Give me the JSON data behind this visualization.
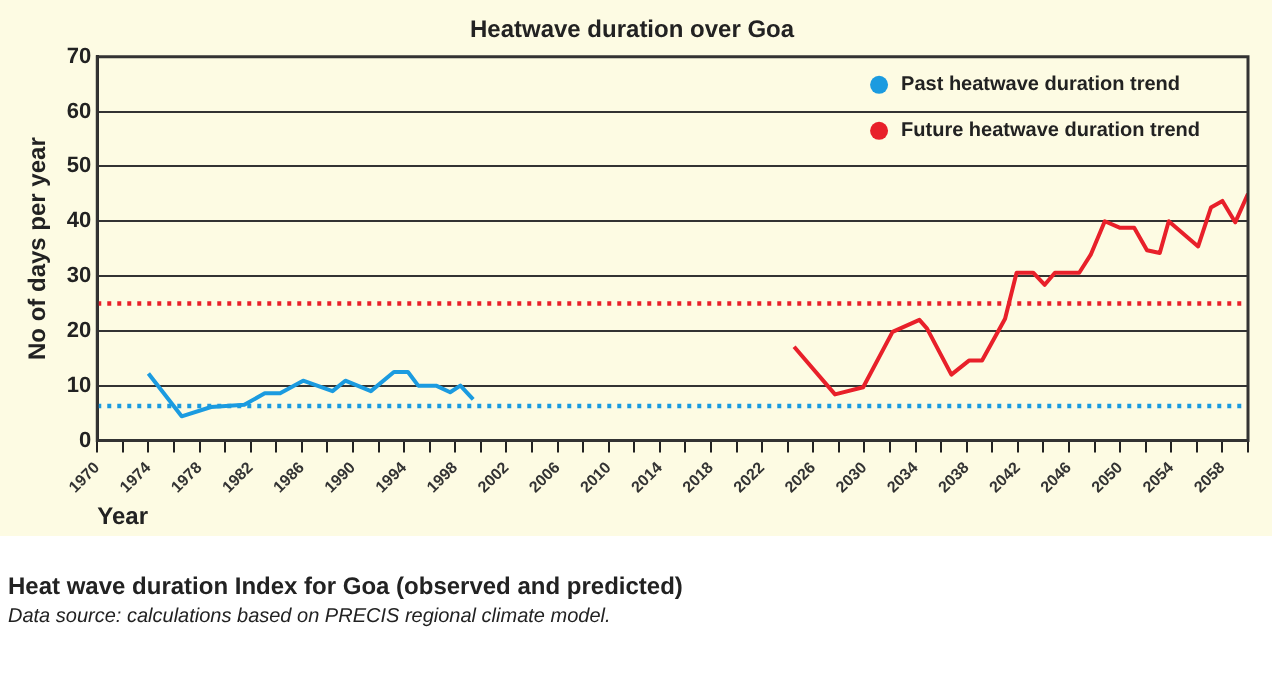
{
  "chart_data": {
    "type": "line",
    "title": "Heatwave duration over Goa",
    "xlabel": "Year",
    "ylabel": "No of days per year",
    "xlim": [
      1970,
      2060
    ],
    "ylim": [
      0,
      70
    ],
    "yticks": [
      0,
      10,
      20,
      30,
      40,
      50,
      60,
      70
    ],
    "xticks": [
      1970,
      {
        "value": 1972,
        "label": null
      },
      1974,
      {
        "value": 1976,
        "label": null
      },
      1978,
      {
        "value": 1980,
        "label": null
      },
      1982,
      {
        "value": 1984,
        "label": null
      },
      1986,
      {
        "value": 1988,
        "label": null
      },
      1990,
      {
        "value": 1992,
        "label": null
      },
      1994,
      {
        "value": 1996,
        "label": null
      },
      1998,
      {
        "value": 2000,
        "label": null
      },
      2002,
      {
        "value": 2004,
        "label": null
      },
      2006,
      {
        "value": 2008,
        "label": null
      },
      2010,
      {
        "value": 2012,
        "label": null
      },
      2014,
      {
        "value": 2016,
        "label": null
      },
      2018,
      {
        "value": 2020,
        "label": null
      },
      2022,
      {
        "value": 2024,
        "label": null
      },
      2026,
      {
        "value": 2028,
        "label": null
      },
      2030,
      {
        "value": 2032,
        "label": null
      },
      2034,
      {
        "value": 2036,
        "label": null
      },
      2038,
      {
        "value": 2040,
        "label": null
      },
      2042,
      {
        "value": 2044,
        "label": null
      },
      2046,
      {
        "value": 2048,
        "label": null
      },
      2050,
      {
        "value": 2052,
        "label": null
      },
      2054,
      {
        "value": 2056,
        "label": null
      },
      2058,
      {
        "value": 2060,
        "label": null
      }
    ],
    "series": [
      {
        "name": "Past heatwave duration trend",
        "color": "#1b9be0",
        "x": [
          1974,
          1976.6,
          1978.9,
          1981.5,
          1983.1,
          1984.3,
          1986.1,
          1988.4,
          1989.4,
          1991.4,
          1993.2,
          1994.3,
          1995.1,
          1996.5,
          1997.6,
          1998.4,
          1999.4
        ],
        "values": [
          12.2,
          4.4,
          6.1,
          6.5,
          8.6,
          8.6,
          10.9,
          9,
          10.9,
          9,
          12.5,
          12.5,
          10,
          10,
          8.8,
          10,
          7.5
        ]
      },
      {
        "name": "Future heatwave duration trend",
        "color": "#e8202a",
        "x": [
          2024.5,
          2027.7,
          2029.9,
          2032.2,
          2034.3,
          2034.9,
          2036.8,
          2038.2,
          2039.2,
          2041,
          2041.9,
          2043.2,
          2044.1,
          2044.9,
          2046.8,
          2047.7,
          2048.8,
          2050,
          2051.1,
          2052.1,
          2053.1,
          2053.8,
          2056.1,
          2057.1,
          2058,
          2059,
          2060
        ],
        "values": [
          17.1,
          8.4,
          9.7,
          19.8,
          22,
          20.4,
          12,
          14.6,
          14.6,
          22.2,
          30.6,
          30.6,
          28.4,
          30.6,
          30.6,
          33.9,
          40,
          38.8,
          38.8,
          34.7,
          34.2,
          40,
          35.4,
          42.5,
          43.7,
          39.8,
          45
        ]
      }
    ],
    "ref_lines": [
      {
        "axis": "y",
        "value": 25,
        "color": "#e8202a",
        "line_style": "dotted"
      },
      {
        "axis": "y",
        "value": 6.3,
        "color": "#1b9be0",
        "line_style": "dotted"
      }
    ],
    "grid": "y",
    "legend": "top right",
    "marker": "none",
    "line_style": "solid",
    "annotations": [
      "Heat wave duration Index for Goa (observed and predicted)",
      "Data source: calculations based on PRECIS regional climate model."
    ]
  }
}
